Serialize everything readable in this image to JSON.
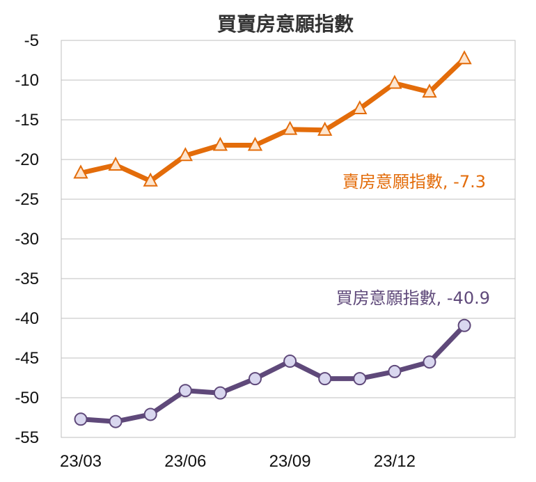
{
  "chart_data": {
    "type": "line",
    "title": "買賣房意願指數",
    "xlabel": "",
    "ylabel": "",
    "x_tick_labels": [
      {
        "label": "23/03",
        "index": 0
      },
      {
        "label": "23/06",
        "index": 3
      },
      {
        "label": "23/09",
        "index": 6
      },
      {
        "label": "23/12",
        "index": 9
      }
    ],
    "ylim": [
      -55,
      -5
    ],
    "y_ticks": [
      -5,
      -10,
      -15,
      -20,
      -25,
      -30,
      -35,
      -40,
      -45,
      -50,
      -55
    ],
    "grid": true,
    "series": [
      {
        "name": "賣房意願指數",
        "color": "#E36C0A",
        "marker": "triangle",
        "values": [
          -21.7,
          -20.7,
          -22.7,
          -19.5,
          -18.2,
          -18.2,
          -16.2,
          -16.3,
          -13.6,
          -10.4,
          -11.5,
          -7.3
        ],
        "annotation": "賣房意願指數, -7.3"
      },
      {
        "name": "買房意願指數",
        "color": "#5F497A",
        "marker": "circle",
        "values": [
          -52.7,
          -53.0,
          -52.1,
          -49.1,
          -49.4,
          -47.6,
          -45.4,
          -47.6,
          -47.6,
          -46.7,
          -45.5,
          -40.9
        ],
        "annotation": "買房意願指數, -40.9"
      }
    ]
  }
}
